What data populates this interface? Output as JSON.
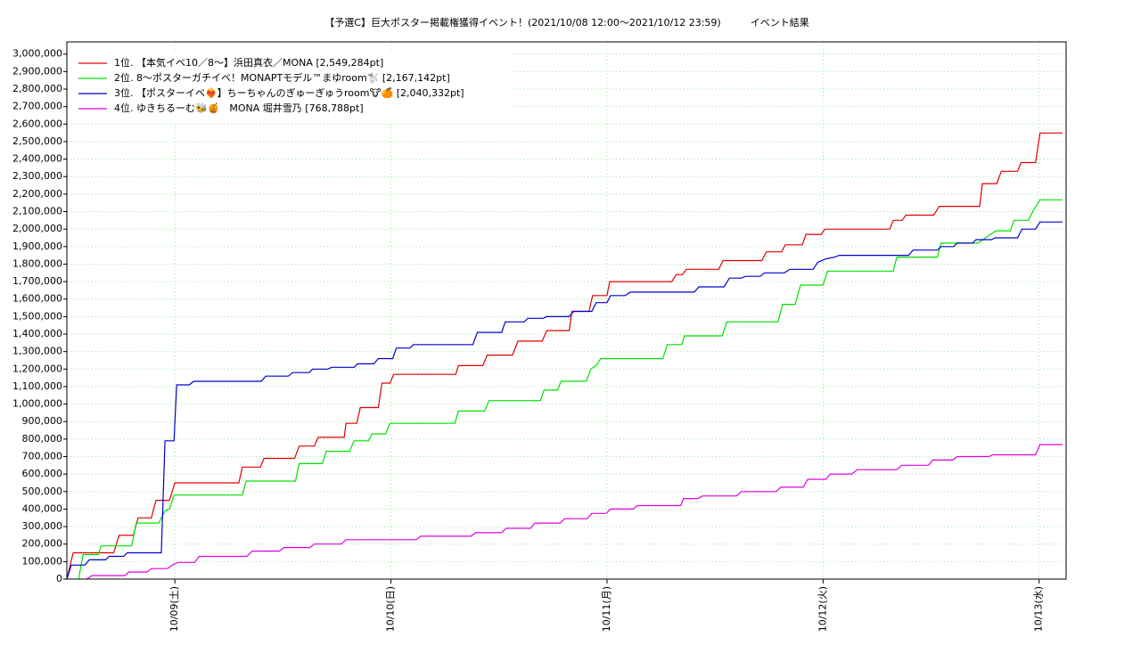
{
  "chart_data": {
    "type": "line",
    "title": "【予選C】巨大ポスター掲載権獲得イベント！(2021/10/08 12:00〜2021/10/12 23:59)　　　イベント結果",
    "xlim": [
      0,
      111
    ],
    "xticks": [
      {
        "value": 12,
        "label": "10/09(土)"
      },
      {
        "value": 36,
        "label": "10/10(日)"
      },
      {
        "value": 60,
        "label": "10/11(月)"
      },
      {
        "value": 84,
        "label": "10/12(火)"
      },
      {
        "value": 108,
        "label": "10/13(水)"
      }
    ],
    "ylim": [
      0,
      3070000
    ],
    "yticks": [
      0,
      {
        "value": 100000,
        "label": "100,000"
      },
      {
        "value": 200000,
        "label": "200,000"
      },
      {
        "value": 300000,
        "label": "300,000"
      },
      {
        "value": 400000,
        "label": "400,000"
      },
      {
        "value": 500000,
        "label": "500,000"
      },
      {
        "value": 600000,
        "label": "600,000"
      },
      {
        "value": 700000,
        "label": "700,000"
      },
      {
        "value": 800000,
        "label": "800,000"
      },
      {
        "value": 900000,
        "label": "900,000"
      },
      {
        "value": 1000000,
        "label": "1,000,000"
      },
      {
        "value": 1100000,
        "label": "1,100,000"
      },
      {
        "value": 1200000,
        "label": "1,200,000"
      },
      {
        "value": 1300000,
        "label": "1,300,000"
      },
      {
        "value": 1400000,
        "label": "1,400,000"
      },
      {
        "value": 1500000,
        "label": "1,500,000"
      },
      {
        "value": 1600000,
        "label": "1,600,000"
      },
      {
        "value": 1700000,
        "label": "1,700,000"
      },
      {
        "value": 1800000,
        "label": "1,800,000"
      },
      {
        "value": 1900000,
        "label": "1,900,000"
      },
      {
        "value": 2000000,
        "label": "2,000,000"
      },
      {
        "value": 2100000,
        "label": "2,100,000"
      },
      {
        "value": 2200000,
        "label": "2,200,000"
      },
      {
        "value": 2300000,
        "label": "2,300,000"
      },
      {
        "value": 2400000,
        "label": "2,400,000"
      },
      {
        "value": 2500000,
        "label": "2,500,000"
      },
      {
        "value": 2600000,
        "label": "2,600,000"
      },
      {
        "value": 2700000,
        "label": "2,700,000"
      },
      {
        "value": 2800000,
        "label": "2,800,000"
      },
      {
        "value": 2900000,
        "label": "2,900,000"
      },
      {
        "value": 3000000,
        "label": "3,000,000"
      }
    ],
    "grid": true,
    "legend": "upper left",
    "series": [
      {
        "name": "1位. 【本気イベ10／8〜】浜田真衣／MONA [2,549,284pt]",
        "color": "#e00000",
        "x": [
          0.0,
          0.7,
          5.2,
          5.8,
          7.4,
          7.9,
          9.4,
          9.9,
          11.4,
          12.0,
          19.1,
          19.5,
          21.5,
          21.9,
          25.3,
          25.8,
          27.5,
          27.9,
          30.8,
          31.0,
          32.2,
          32.6,
          34.6,
          35.0,
          35.9,
          36.3,
          43.2,
          43.5,
          46.2,
          46.7,
          49.5,
          50.1,
          52.8,
          53.3,
          55.8,
          56.1,
          58.0,
          58.4,
          60.0,
          60.3,
          67.2,
          67.7,
          68.4,
          68.8,
          72.4,
          72.9,
          77.2,
          77.7,
          79.4,
          79.8,
          81.7,
          82.1,
          83.8,
          84.2,
          91.4,
          91.8,
          92.8,
          93.2,
          96.3,
          96.9,
          101.4,
          101.7,
          103.3,
          103.8,
          105.6,
          106.0,
          107.6,
          108.1,
          110.6
        ],
        "values": [
          0,
          150000,
          150000,
          250000,
          250000,
          350000,
          350000,
          450000,
          450000,
          550000,
          550000,
          640000,
          640000,
          690000,
          690000,
          760000,
          760000,
          810000,
          810000,
          890000,
          890000,
          980000,
          980000,
          1120000,
          1120000,
          1170000,
          1170000,
          1220000,
          1220000,
          1280000,
          1280000,
          1360000,
          1360000,
          1420000,
          1420000,
          1530000,
          1530000,
          1620000,
          1620000,
          1700000,
          1700000,
          1740000,
          1740000,
          1770000,
          1770000,
          1820000,
          1820000,
          1870000,
          1870000,
          1910000,
          1910000,
          1970000,
          1970000,
          2000000,
          2000000,
          2050000,
          2050000,
          2080000,
          2080000,
          2130000,
          2130000,
          2260000,
          2260000,
          2330000,
          2330000,
          2380000,
          2380000,
          2549284,
          2549284
        ]
      },
      {
        "name": "2位. 8〜ポスターガチイベ！MONAPTモデル™まゆroom🐩 [2,167,142pt]",
        "color": "#00e000",
        "x": [
          1.3,
          1.8,
          3.5,
          3.8,
          7.2,
          7.7,
          10.2,
          10.9,
          11.4,
          11.9,
          19.5,
          19.9,
          25.4,
          25.8,
          28.4,
          28.8,
          31.4,
          31.9,
          33.5,
          33.9,
          35.4,
          35.9,
          43.1,
          43.5,
          46.4,
          46.9,
          52.6,
          53.0,
          54.5,
          54.9,
          57.7,
          58.2,
          58.8,
          59.3,
          66.2,
          66.7,
          68.3,
          68.6,
          72.8,
          73.3,
          79.0,
          79.5,
          80.9,
          81.5,
          84.0,
          84.5,
          91.8,
          92.2,
          96.7,
          97.1,
          101.2,
          103.2,
          104.8,
          105.2,
          106.8,
          107.4,
          108.1,
          110.6
        ],
        "values": [
          0,
          140000,
          140000,
          190000,
          190000,
          320000,
          320000,
          390000,
          400000,
          480000,
          480000,
          560000,
          560000,
          660000,
          660000,
          730000,
          730000,
          790000,
          790000,
          830000,
          830000,
          890000,
          890000,
          960000,
          960000,
          1020000,
          1020000,
          1080000,
          1080000,
          1130000,
          1130000,
          1200000,
          1220000,
          1260000,
          1260000,
          1340000,
          1340000,
          1390000,
          1390000,
          1470000,
          1470000,
          1570000,
          1570000,
          1680000,
          1680000,
          1760000,
          1760000,
          1840000,
          1840000,
          1920000,
          1920000,
          1990000,
          1990000,
          2050000,
          2050000,
          2110000,
          2167142,
          2167142
        ]
      },
      {
        "name": "3位. 【ポスターイベ❤️‍🔥】ちーちゃんのぎゅーぎゅうroom🐮🍊 [2,040,332pt]",
        "color": "#0000d0",
        "x": [
          0.0,
          0.5,
          2.0,
          2.5,
          4.3,
          4.7,
          6.3,
          6.7,
          10.5,
          10.9,
          11.9,
          12.2,
          13.6,
          14.1,
          21.6,
          22.1,
          24.6,
          25.1,
          26.9,
          27.3,
          29.0,
          29.4,
          31.9,
          32.3,
          34.1,
          34.6,
          36.2,
          36.6,
          38.1,
          38.5,
          45.1,
          45.6,
          48.3,
          48.7,
          50.8,
          51.2,
          52.9,
          53.3,
          55.8,
          56.3,
          58.3,
          58.8,
          60.0,
          60.4,
          62.0,
          62.6,
          69.7,
          70.2,
          73.0,
          73.6,
          74.9,
          75.4,
          77.0,
          77.5,
          79.7,
          80.3,
          82.9,
          83.4,
          84.3,
          85.3,
          85.8,
          93.5,
          94.0,
          96.7,
          97.1,
          98.5,
          98.9,
          100.6,
          101.0,
          102.7,
          103.1,
          105.6,
          106.1,
          107.6,
          108.1,
          110.6
        ],
        "values": [
          0,
          80000,
          80000,
          110000,
          110000,
          130000,
          130000,
          150000,
          150000,
          790000,
          790000,
          1110000,
          1110000,
          1130000,
          1130000,
          1160000,
          1160000,
          1180000,
          1180000,
          1200000,
          1200000,
          1210000,
          1210000,
          1230000,
          1230000,
          1260000,
          1260000,
          1320000,
          1320000,
          1340000,
          1340000,
          1410000,
          1410000,
          1470000,
          1470000,
          1490000,
          1490000,
          1500000,
          1500000,
          1530000,
          1530000,
          1580000,
          1580000,
          1620000,
          1620000,
          1640000,
          1640000,
          1670000,
          1670000,
          1720000,
          1720000,
          1730000,
          1730000,
          1750000,
          1750000,
          1770000,
          1770000,
          1810000,
          1830000,
          1840000,
          1850000,
          1850000,
          1880000,
          1880000,
          1900000,
          1900000,
          1920000,
          1920000,
          1940000,
          1940000,
          1950000,
          1950000,
          2000000,
          2000000,
          2040332,
          2040332
        ]
      },
      {
        "name": "4位. ゆきちるーむ🐝🍯　MONA 堀井雪乃 [768,788pt]",
        "color": "#e000e0",
        "x": [
          2.2,
          2.8,
          6.4,
          6.9,
          8.9,
          9.4,
          11.2,
          11.7,
          12.4,
          14.2,
          14.7,
          20.0,
          20.6,
          23.6,
          24.1,
          27.0,
          27.5,
          30.5,
          31.0,
          38.8,
          39.3,
          44.9,
          45.4,
          48.3,
          48.8,
          51.5,
          52.0,
          54.8,
          55.3,
          57.8,
          58.3,
          59.9,
          60.4,
          62.9,
          63.4,
          68.2,
          68.5,
          70.1,
          70.6,
          74.4,
          74.9,
          78.8,
          79.3,
          81.8,
          82.3,
          84.3,
          84.8,
          87.2,
          87.8,
          92.2,
          92.7,
          95.7,
          96.2,
          98.4,
          98.9,
          102.4,
          102.9,
          107.6,
          108.1,
          110.6
        ],
        "values": [
          0,
          20000,
          20000,
          40000,
          40000,
          60000,
          60000,
          80000,
          95000,
          95000,
          130000,
          130000,
          160000,
          160000,
          180000,
          180000,
          200000,
          200000,
          225000,
          225000,
          245000,
          245000,
          265000,
          265000,
          290000,
          290000,
          320000,
          320000,
          345000,
          345000,
          375000,
          375000,
          400000,
          400000,
          420000,
          420000,
          460000,
          460000,
          475000,
          475000,
          500000,
          500000,
          525000,
          525000,
          570000,
          570000,
          600000,
          600000,
          625000,
          625000,
          650000,
          650000,
          680000,
          680000,
          700000,
          700000,
          710000,
          710000,
          768788,
          768788
        ]
      }
    ]
  }
}
